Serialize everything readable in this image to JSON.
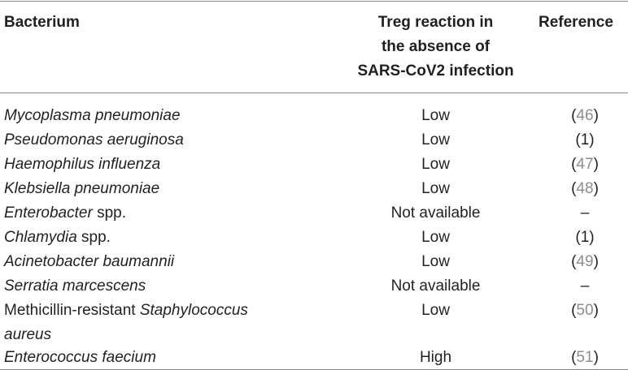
{
  "headers": {
    "bacterium": "Bacterium",
    "treg_line1": "Treg reaction in",
    "treg_line2": "the absence of",
    "treg_line3": "SARS-CoV2 infection",
    "reference": "Reference"
  },
  "rows": [
    {
      "name_italic": "Mycoplasma pneumoniae",
      "treg": "Low",
      "ref_num": "46"
    },
    {
      "name_italic": "Pseudomonas aeruginosa",
      "treg": "Low",
      "ref_num": "1"
    },
    {
      "name_italic": "Haemophilus influenza",
      "treg": "Low",
      "ref_num": "47"
    },
    {
      "name_italic": "Klebsiella pneumoniae",
      "treg": "Low",
      "ref_num": "48"
    },
    {
      "name_italic": "Enterobacter",
      "name_suffix": " spp.",
      "treg": "Not available",
      "ref_text": "–"
    },
    {
      "name_italic": "Chlamydia",
      "name_suffix": " spp.",
      "treg": "Low",
      "ref_num": "1"
    },
    {
      "name_italic": "Acinetobacter baumannii",
      "treg": "Low",
      "ref_num": "49"
    },
    {
      "name_italic": "Serratia marcescens",
      "treg": "Not available",
      "ref_text": "–"
    },
    {
      "name_prefix": "Methicillin-resistant ",
      "name_italic": "Staphylococcus",
      "name_italic_line2": "aureus",
      "treg": "Low",
      "ref_num": "50"
    },
    {
      "name_italic": "Enterococcus faecium",
      "treg": "High",
      "ref_num": "51"
    }
  ]
}
